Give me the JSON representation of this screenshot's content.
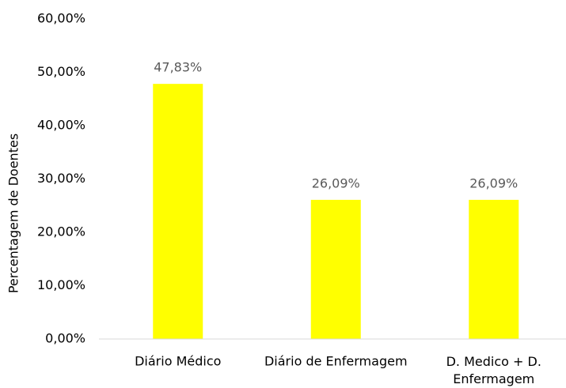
{
  "chart_data": {
    "type": "bar",
    "ylabel": "Percentagem de Doentes",
    "categories": [
      "Diário Médico",
      "Diário de Enfermagem",
      "D. Medico + D. Enfermagem"
    ],
    "values": [
      47.83,
      26.09,
      26.09
    ],
    "value_labels": [
      "47,83%",
      "26,09%",
      "26,09%"
    ],
    "color": "#ffff00",
    "ylim": [
      0,
      60
    ],
    "yticks": [
      {
        "value": 0,
        "label": "0,00%"
      },
      {
        "value": 10,
        "label": "10,00%"
      },
      {
        "value": 20,
        "label": "20,00%"
      },
      {
        "value": 30,
        "label": "30,00%"
      },
      {
        "value": 40,
        "label": "40,00%"
      },
      {
        "value": 50,
        "label": "50,00%"
      },
      {
        "value": 60,
        "label": "60,00%"
      }
    ],
    "grid": false
  }
}
